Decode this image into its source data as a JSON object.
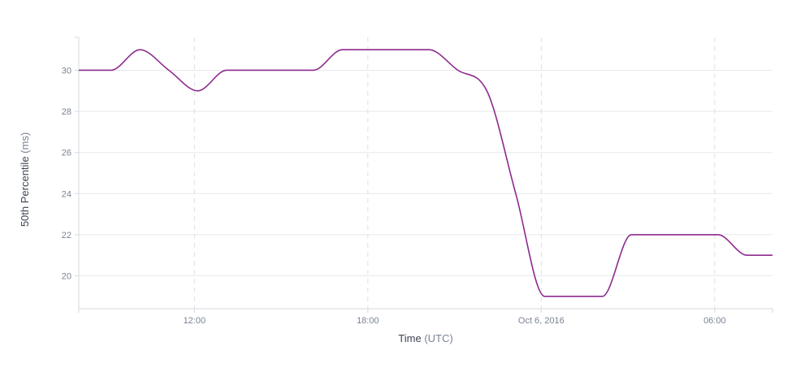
{
  "chart_data": {
    "type": "line",
    "xlabel": "Time",
    "xlabel_unit": "(UTC)",
    "ylabel": "50th Percentile",
    "ylabel_unit": "(ms)",
    "ylim": [
      18.4,
      31.6
    ],
    "yticks": [
      20,
      22,
      24,
      26,
      28,
      30
    ],
    "xlim": [
      "2016-10-05T08:00Z",
      "2016-10-06T08:00Z"
    ],
    "xticks": [
      {
        "t": "2016-10-05T12:00Z",
        "label": "12:00"
      },
      {
        "t": "2016-10-05T18:00Z",
        "label": "18:00"
      },
      {
        "t": "2016-10-06T00:00Z",
        "label": "Oct 6, 2016"
      },
      {
        "t": "2016-10-06T06:00Z",
        "label": "06:00"
      }
    ],
    "grid": true,
    "series": [
      {
        "color": "#8e2a8e",
        "points": [
          {
            "t": "2016-10-05T08:00Z",
            "y": 30
          },
          {
            "t": "2016-10-05T09:07Z",
            "y": 30
          },
          {
            "t": "2016-10-05T10:07Z",
            "y": 31
          },
          {
            "t": "2016-10-05T11:07Z",
            "y": 30
          },
          {
            "t": "2016-10-05T12:07Z",
            "y": 29
          },
          {
            "t": "2016-10-05T13:07Z",
            "y": 30
          },
          {
            "t": "2016-10-05T16:07Z",
            "y": 30
          },
          {
            "t": "2016-10-05T17:07Z",
            "y": 31
          },
          {
            "t": "2016-10-05T20:07Z",
            "y": 31
          },
          {
            "t": "2016-10-05T21:07Z",
            "y": 30
          },
          {
            "t": "2016-10-05T22:07Z",
            "y": 29
          },
          {
            "t": "2016-10-05T23:07Z",
            "y": 24
          },
          {
            "t": "2016-10-06T00:07Z",
            "y": 19
          },
          {
            "t": "2016-10-06T02:07Z",
            "y": 19
          },
          {
            "t": "2016-10-06T03:07Z",
            "y": 22
          },
          {
            "t": "2016-10-06T06:07Z",
            "y": 22
          },
          {
            "t": "2016-10-06T07:07Z",
            "y": 21
          },
          {
            "t": "2016-10-06T08:00Z",
            "y": 21
          }
        ]
      }
    ]
  }
}
